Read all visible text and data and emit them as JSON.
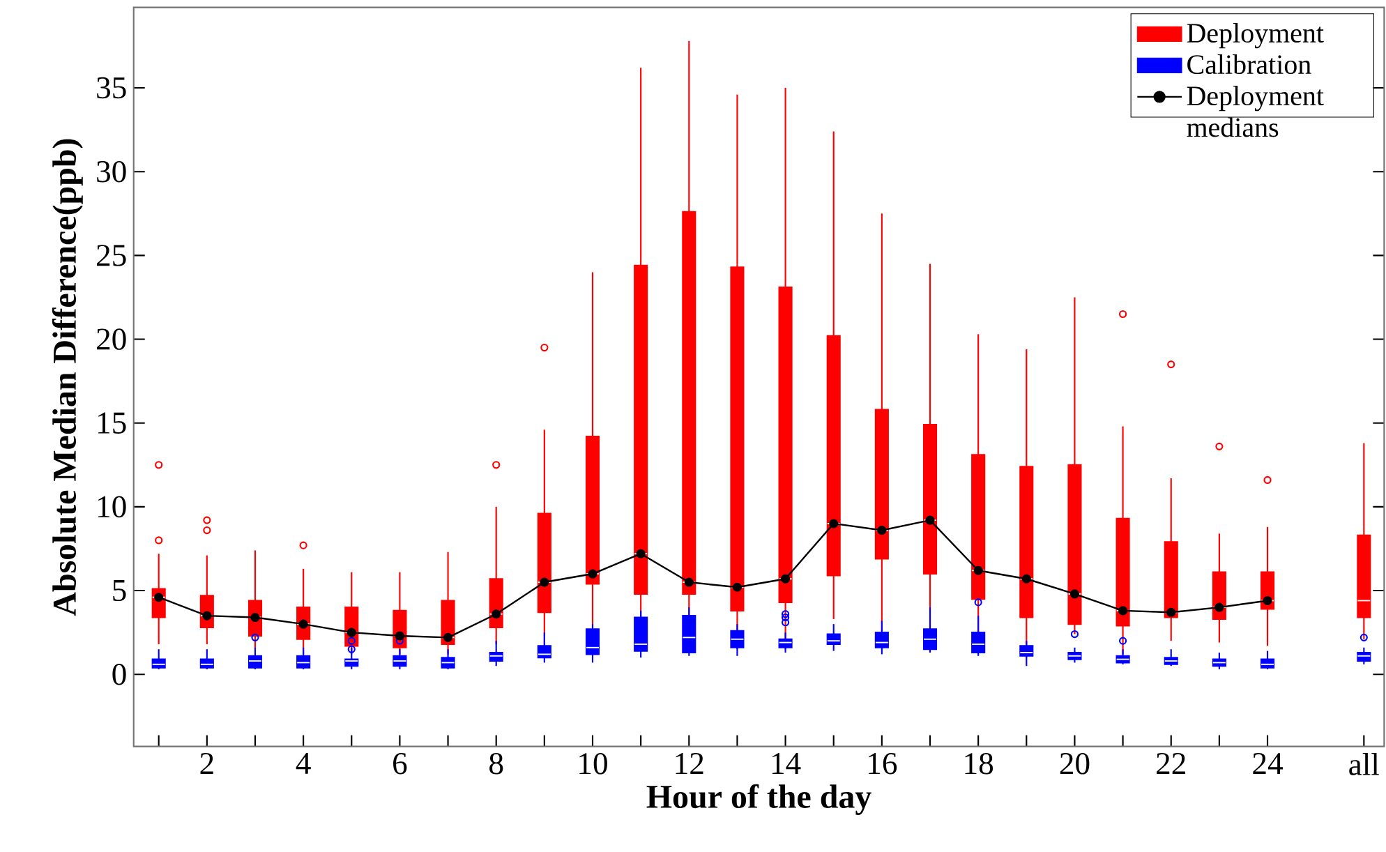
{
  "chart_data": {
    "type": "box",
    "xlabel": "Hour of the day",
    "ylabel": "Absolute Median Difference(ppb)",
    "categories": [
      null,
      "2",
      null,
      "4",
      null,
      "6",
      null,
      "8",
      null,
      "10",
      null,
      "12",
      null,
      "14",
      null,
      "16",
      null,
      "18",
      null,
      "20",
      null,
      "22",
      null,
      "24",
      null,
      "all"
    ],
    "ylim": [
      -4.3,
      39.8
    ],
    "yticks": [
      0,
      5,
      10,
      15,
      20,
      25,
      30,
      35
    ],
    "legend": "top right",
    "series": [
      {
        "name": "Deployment",
        "color": "#ff0000",
        "boxes": [
          {
            "low": 1.8,
            "q1": 3.4,
            "median": 4.6,
            "q3": 5.1,
            "high": 7.2,
            "outliers": [
              12.5,
              8.0
            ]
          },
          {
            "low": 1.8,
            "q1": 2.8,
            "median": 3.5,
            "q3": 4.7,
            "high": 7.1,
            "outliers": [
              8.6,
              9.2
            ]
          },
          {
            "low": 1.5,
            "q1": 2.3,
            "median": 3.4,
            "q3": 4.4,
            "high": 7.4
          },
          {
            "low": 1.2,
            "q1": 2.1,
            "median": 3.0,
            "q3": 4.0,
            "high": 6.3,
            "outliers": [
              7.7
            ]
          },
          {
            "low": 1.2,
            "q1": 1.7,
            "median": 2.5,
            "q3": 4.0,
            "high": 6.1
          },
          {
            "low": 1.2,
            "q1": 1.6,
            "median": 2.3,
            "q3": 3.8,
            "high": 6.1
          },
          {
            "low": 1.2,
            "q1": 1.8,
            "median": 2.2,
            "q3": 4.4,
            "high": 7.3
          },
          {
            "low": 1.8,
            "q1": 2.8,
            "median": 3.6,
            "q3": 5.7,
            "high": 10.0,
            "outliers": [
              12.5
            ]
          },
          {
            "low": 1.6,
            "q1": 3.7,
            "median": 5.5,
            "q3": 9.6,
            "high": 14.6,
            "outliers": [
              19.5
            ]
          },
          {
            "low": 2.4,
            "q1": 5.4,
            "median": 6.0,
            "q3": 14.2,
            "high": 24.0
          },
          {
            "low": 2.7,
            "q1": 4.8,
            "median": 7.2,
            "q3": 24.4,
            "high": 36.2
          },
          {
            "low": 2.7,
            "q1": 4.8,
            "median": 5.5,
            "q3": 27.6,
            "high": 37.8
          },
          {
            "low": 1.5,
            "q1": 3.8,
            "median": 5.2,
            "q3": 24.3,
            "high": 34.6
          },
          {
            "low": 1.5,
            "q1": 4.3,
            "median": 5.7,
            "q3": 23.1,
            "high": 35.0
          },
          {
            "low": 3.3,
            "q1": 5.9,
            "median": 9.0,
            "q3": 20.2,
            "high": 32.4
          },
          {
            "low": 1.6,
            "q1": 6.9,
            "median": 8.6,
            "q3": 15.8,
            "high": 27.5
          },
          {
            "low": 2.1,
            "q1": 6.0,
            "median": 9.2,
            "q3": 14.9,
            "high": 24.5
          },
          {
            "low": 1.5,
            "q1": 4.5,
            "median": 6.2,
            "q3": 13.1,
            "high": 20.3
          },
          {
            "low": 1.0,
            "q1": 3.4,
            "median": 5.7,
            "q3": 12.4,
            "high": 19.4
          },
          {
            "low": 2.4,
            "q1": 3.0,
            "median": 4.8,
            "q3": 12.5,
            "high": 22.5
          },
          {
            "low": 1.2,
            "q1": 2.9,
            "median": 3.8,
            "q3": 9.3,
            "high": 14.8,
            "outliers": [
              21.5
            ]
          },
          {
            "low": 2.0,
            "q1": 3.4,
            "median": 3.7,
            "q3": 7.9,
            "high": 11.7,
            "outliers": [
              18.5
            ]
          },
          {
            "low": 1.9,
            "q1": 3.3,
            "median": 4.0,
            "q3": 6.1,
            "high": 8.4,
            "outliers": [
              13.6
            ]
          },
          {
            "low": 1.7,
            "q1": 3.9,
            "median": 4.4,
            "q3": 6.1,
            "high": 8.8,
            "outliers": [
              11.6
            ]
          },
          null,
          {
            "low": 2.1,
            "q1": 3.4,
            "median": 4.4,
            "q3": 8.3,
            "high": 13.8
          }
        ]
      },
      {
        "name": "Calibration",
        "color": "#0000ff",
        "boxes": [
          {
            "low": 0.3,
            "q1": 0.4,
            "median": 0.6,
            "q3": 0.9,
            "high": 1.5
          },
          {
            "low": 0.3,
            "q1": 0.4,
            "median": 0.6,
            "q3": 0.9,
            "high": 1.5
          },
          {
            "low": 0.3,
            "q1": 0.4,
            "median": 0.8,
            "q3": 1.1,
            "high": 1.6,
            "outliers": [
              2.2
            ]
          },
          {
            "low": 0.3,
            "q1": 0.4,
            "median": 0.7,
            "q3": 1.1,
            "high": 1.6
          },
          {
            "low": 0.3,
            "q1": 0.5,
            "median": 0.8,
            "q3": 0.9,
            "high": 1.6,
            "outliers": [
              1.5,
              2.0
            ]
          },
          {
            "low": 0.3,
            "q1": 0.5,
            "median": 0.8,
            "q3": 1.1,
            "high": 1.5,
            "outliers": [
              2.0
            ]
          },
          {
            "low": 0.3,
            "q1": 0.4,
            "median": 0.7,
            "q3": 1.0,
            "high": 1.5
          },
          {
            "low": 0.5,
            "q1": 0.8,
            "median": 1.1,
            "q3": 1.3,
            "high": 2.0
          },
          {
            "low": 0.7,
            "q1": 1.0,
            "median": 1.2,
            "q3": 1.7,
            "high": 2.5
          },
          {
            "low": 0.7,
            "q1": 1.2,
            "median": 1.6,
            "q3": 2.7,
            "high": 3.0
          },
          {
            "low": 1.0,
            "q1": 1.4,
            "median": 1.8,
            "q3": 3.4,
            "high": 3.8
          },
          {
            "low": 1.1,
            "q1": 1.3,
            "median": 2.2,
            "q3": 3.5,
            "high": 4.0
          },
          {
            "low": 1.1,
            "q1": 1.6,
            "median": 2.1,
            "q3": 2.6,
            "high": 3.0
          },
          {
            "low": 1.3,
            "q1": 1.6,
            "median": 1.9,
            "q3": 2.1,
            "high": 2.5,
            "outliers": [
              3.6,
              3.4,
              3.1
            ]
          },
          {
            "low": 1.4,
            "q1": 1.8,
            "median": 2.0,
            "q3": 2.4,
            "high": 3.0
          },
          {
            "low": 1.2,
            "q1": 1.6,
            "median": 1.9,
            "q3": 2.5,
            "high": 3.2
          },
          {
            "low": 1.3,
            "q1": 1.5,
            "median": 2.1,
            "q3": 2.7,
            "high": 4.0
          },
          {
            "low": 1.1,
            "q1": 1.3,
            "median": 1.8,
            "q3": 2.5,
            "high": 3.5,
            "outliers": [
              4.3
            ]
          },
          {
            "low": 0.5,
            "q1": 1.1,
            "median": 1.3,
            "q3": 1.7,
            "high": 2.0
          },
          {
            "low": 0.7,
            "q1": 0.9,
            "median": 1.1,
            "q3": 1.3,
            "high": 1.6,
            "outliers": [
              2.4
            ]
          },
          {
            "low": 0.6,
            "q1": 0.7,
            "median": 0.9,
            "q3": 1.1,
            "high": 1.5,
            "outliers": [
              2.0
            ]
          },
          {
            "low": 0.5,
            "q1": 0.6,
            "median": 0.8,
            "q3": 1.0,
            "high": 1.5
          },
          {
            "low": 0.3,
            "q1": 0.5,
            "median": 0.7,
            "q3": 0.9,
            "high": 1.3
          },
          {
            "low": 0.3,
            "q1": 0.4,
            "median": 0.6,
            "q3": 0.9,
            "high": 1.4
          },
          null,
          {
            "low": 0.6,
            "q1": 0.8,
            "median": 1.1,
            "q3": 1.3,
            "high": 1.6,
            "outliers": [
              2.2
            ]
          }
        ]
      },
      {
        "name": "Deployment medians",
        "type": "line",
        "color": "#000000",
        "marker": "circle",
        "values": [
          4.6,
          3.5,
          3.4,
          3.0,
          2.5,
          2.3,
          2.2,
          3.6,
          5.5,
          6.0,
          7.2,
          5.5,
          5.2,
          5.7,
          9.0,
          8.6,
          9.2,
          6.2,
          5.7,
          4.8,
          3.8,
          3.7,
          4.0,
          4.4,
          null,
          null
        ]
      }
    ]
  }
}
